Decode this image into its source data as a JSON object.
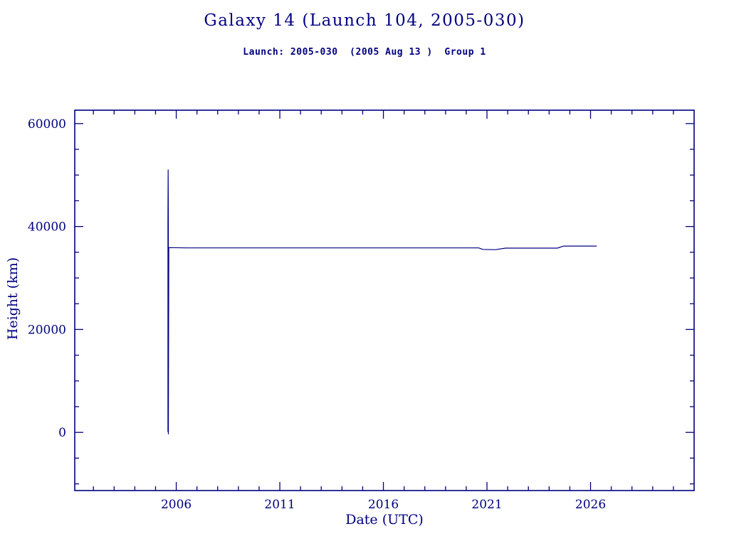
{
  "page": {
    "background": "#ffffff",
    "accent": "#000080"
  },
  "header": {
    "title": "Galaxy 14 (Launch 104, 2005-030)",
    "subtitle": "Launch: 2005-030  (2005 Aug 13 )  Group 1"
  },
  "chart_data": {
    "type": "line",
    "title": "Galaxy 14 (Launch 104, 2005-030)",
    "subtitle": "Launch: 2005-030  (2005 Aug 13 )  Group 1",
    "xlabel": "Date (UTC)",
    "ylabel": "Height (km)",
    "xlim": [
      2001.1,
      2031.0
    ],
    "ylim": [
      -11300,
      62600
    ],
    "x_ticks": {
      "major": [
        2006,
        2011,
        2016,
        2021,
        2026
      ],
      "minor_step": 1
    },
    "y_ticks": {
      "major": [
        0,
        20000,
        40000,
        60000
      ],
      "minor_step": 5000
    },
    "grid": false,
    "legend": "none",
    "line_color": "#000080",
    "series": [
      {
        "name": "height_km",
        "points": [
          [
            2005.6,
            100
          ],
          [
            2005.6,
            40800
          ],
          [
            2005.61,
            51000
          ],
          [
            2005.62,
            40800
          ],
          [
            2005.62,
            -300
          ],
          [
            2005.64,
            35900
          ],
          [
            2006.5,
            35850
          ],
          [
            2010.0,
            35850
          ],
          [
            2015.0,
            35850
          ],
          [
            2020.6,
            35850
          ],
          [
            2020.8,
            35550
          ],
          [
            2021.4,
            35500
          ],
          [
            2021.9,
            35800
          ],
          [
            2024.4,
            35800
          ],
          [
            2024.7,
            36200
          ],
          [
            2026.3,
            36200
          ]
        ]
      }
    ]
  }
}
